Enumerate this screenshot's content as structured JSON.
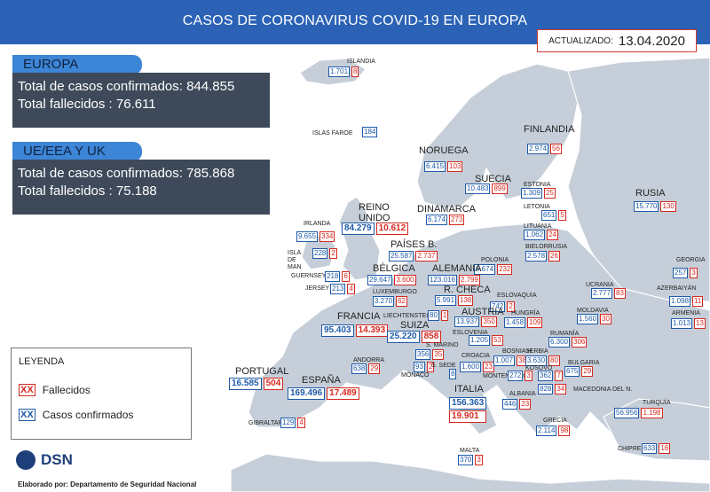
{
  "title": "CASOS DE CORONAVIRUS COVID-19 EN EUROPA",
  "updated": {
    "label": "ACTUALIZADO:",
    "date": "13.04.2020"
  },
  "europe": {
    "tab": "EUROPA",
    "cases_line": "Total de casos confirmados: 844.855",
    "deaths_line": "Total fallecidos : 76.611"
  },
  "eu": {
    "tab": "UE/EEA Y UK",
    "cases_line": "Total de casos confirmados: 785.868",
    "deaths_line": "Total fallecidos : 75.188"
  },
  "legend": {
    "title": "LEYENDA",
    "swatch": "XX",
    "deaths_label": "Fallecidos",
    "cases_label": "Casos confirmados"
  },
  "logo": {
    "name": "DSN"
  },
  "credit": "Elaborado por: Departamento de Seguridad Nacional",
  "colors": {
    "banner": "#2b62b5",
    "sea": "#ffffff",
    "land": "#c6cfd9",
    "cases": "#1e5aa8",
    "deaths": "#d6281f",
    "panel": "#3e4a5a"
  },
  "countries": [
    {
      "id": "islandia",
      "label": "ISLANDIA",
      "cases": "1.701",
      "deaths": "8"
    },
    {
      "id": "islas-faroe",
      "label": "ISLAS FAROE",
      "cases": "184",
      "deaths": ""
    },
    {
      "id": "finlandia",
      "label": "FINLANDIA",
      "cases": "2.974",
      "deaths": "56"
    },
    {
      "id": "noruega",
      "label": "NORUEGA",
      "cases": "6.415",
      "deaths": "103"
    },
    {
      "id": "suecia",
      "label": "SUECIA",
      "cases": "10.483",
      "deaths": "899"
    },
    {
      "id": "estonia",
      "label": "ESTONIA",
      "cases": "1.309",
      "deaths": "25"
    },
    {
      "id": "rusia",
      "label": "RUSIA",
      "cases": "15.770",
      "deaths": "130"
    },
    {
      "id": "letonia",
      "label": "LETONIA",
      "cases": "651",
      "deaths": "5"
    },
    {
      "id": "lituania",
      "label": "LITUANIA",
      "cases": "1.062",
      "deaths": "24"
    },
    {
      "id": "dinamarca",
      "label": "DINAMARCA",
      "cases": "6.174",
      "deaths": "273"
    },
    {
      "id": "reino-unido",
      "label": "REINO UNIDO",
      "cases": "84.279",
      "deaths": "10.612"
    },
    {
      "id": "irlanda",
      "label": "IRLANDA",
      "cases": "9.655",
      "deaths": "334"
    },
    {
      "id": "isla-de-man",
      "label": "ISLA DE MAN",
      "cases": "228",
      "deaths": "2"
    },
    {
      "id": "paises-bajos",
      "label": "PAÍSES B.",
      "cases": "25.587",
      "deaths": "2.737"
    },
    {
      "id": "bielorrusia",
      "label": "BIELORRUSIA",
      "cases": "2.578",
      "deaths": "26"
    },
    {
      "id": "georgia",
      "label": "GEORGIA",
      "cases": "257",
      "deaths": "3"
    },
    {
      "id": "polonia",
      "label": "POLONIA",
      "cases": "6.674",
      "deaths": "232"
    },
    {
      "id": "guernsey",
      "label": "GUERNSEY",
      "cases": "218",
      "deaths": "6"
    },
    {
      "id": "jersey",
      "label": "JERSEY",
      "cases": "213",
      "deaths": "4"
    },
    {
      "id": "belgica",
      "label": "BÉLGICA",
      "cases": "29.647",
      "deaths": "3.600"
    },
    {
      "id": "alemania",
      "label": "ALEMANIA",
      "cases": "123.016",
      "deaths": "2.799"
    },
    {
      "id": "luxemburgo",
      "label": "LUXEMBURGO",
      "cases": "3.270",
      "deaths": "62"
    },
    {
      "id": "republica-checa",
      "label": "R. CHECA",
      "cases": "5.991",
      "deaths": "138"
    },
    {
      "id": "eslovaquia",
      "label": "ESLOVAQUIA",
      "cases": "742",
      "deaths": "2"
    },
    {
      "id": "ucrania",
      "label": "UCRANIA",
      "cases": "2.777",
      "deaths": "83"
    },
    {
      "id": "azerbaiyan",
      "label": "AZERBAIYÁN",
      "cases": "1.098",
      "deaths": "11"
    },
    {
      "id": "armenia",
      "label": "ARMENIA",
      "cases": "1.013",
      "deaths": "13"
    },
    {
      "id": "liechtenstein",
      "label": "LIECHTENSTEIN",
      "cases": "80",
      "deaths": "1"
    },
    {
      "id": "austria",
      "label": "AUSTRIA",
      "cases": "13.937",
      "deaths": "350"
    },
    {
      "id": "hungria",
      "label": "HUNGRÍA",
      "cases": "1.458",
      "deaths": "109"
    },
    {
      "id": "moldavia",
      "label": "MOLDAVIA",
      "cases": "1.560",
      "deaths": "30"
    },
    {
      "id": "francia",
      "label": "FRANCIA",
      "cases": "95.403",
      "deaths": "14.393"
    },
    {
      "id": "suiza",
      "label": "SUIZA",
      "cases": "25.220",
      "deaths": "858"
    },
    {
      "id": "eslovenia",
      "label": "ESLOVENIA",
      "cases": "1.205",
      "deaths": "53"
    },
    {
      "id": "rumania",
      "label": "RUMANÍA",
      "cases": "6.300",
      "deaths": "306"
    },
    {
      "id": "croacia",
      "label": "CROACIA",
      "cases": "1.600",
      "deaths": "23"
    },
    {
      "id": "bosnia",
      "label": "BOSNIA H.",
      "cases": "1.007",
      "deaths": "38"
    },
    {
      "id": "serbia",
      "label": "SERBIA",
      "cases": "3.630",
      "deaths": "80"
    },
    {
      "id": "san-marino",
      "label": "S. MARINO",
      "cases": "356",
      "deaths": "35"
    },
    {
      "id": "andorra",
      "label": "ANDORRA",
      "cases": "638",
      "deaths": "29"
    },
    {
      "id": "portugal",
      "label": "PORTUGAL",
      "cases": "16.585",
      "deaths": "504"
    },
    {
      "id": "espana",
      "label": "ESPAÑA",
      "cases": "169.496",
      "deaths": "17.489"
    },
    {
      "id": "monaco",
      "label": "MÓNACO",
      "cases": "93",
      "deaths": "2"
    },
    {
      "id": "santa-sede",
      "label": "S. SEDE",
      "cases": "8",
      "deaths": ""
    },
    {
      "id": "montenegro",
      "label": "MONTENEGRO",
      "cases": "272",
      "deaths": "3"
    },
    {
      "id": "kosovo",
      "label": "KOSOVO",
      "cases": "362",
      "deaths": "7"
    },
    {
      "id": "bulgaria",
      "label": "BULGARIA",
      "cases": "675",
      "deaths": "29"
    },
    {
      "id": "macedonia",
      "label": "MACEDONIA DEL N.",
      "cases": "828",
      "deaths": "34"
    },
    {
      "id": "italia",
      "label": "ITALIA",
      "cases": "156.363",
      "deaths": "19.901"
    },
    {
      "id": "albania",
      "label": "ALBANIA",
      "cases": "446",
      "deaths": "23"
    },
    {
      "id": "turquia",
      "label": "TURQUÍA",
      "cases": "56.956",
      "deaths": "1.198"
    },
    {
      "id": "grecia",
      "label": "GRECIA",
      "cases": "2.114",
      "deaths": "98"
    },
    {
      "id": "gibraltar",
      "label": "GIBRALTAR",
      "cases": "129",
      "deaths": "4"
    },
    {
      "id": "chipre",
      "label": "CHIPRE",
      "cases": "633",
      "deaths": "16"
    },
    {
      "id": "malta",
      "label": "MALTA",
      "cases": "370",
      "deaths": "3"
    }
  ]
}
